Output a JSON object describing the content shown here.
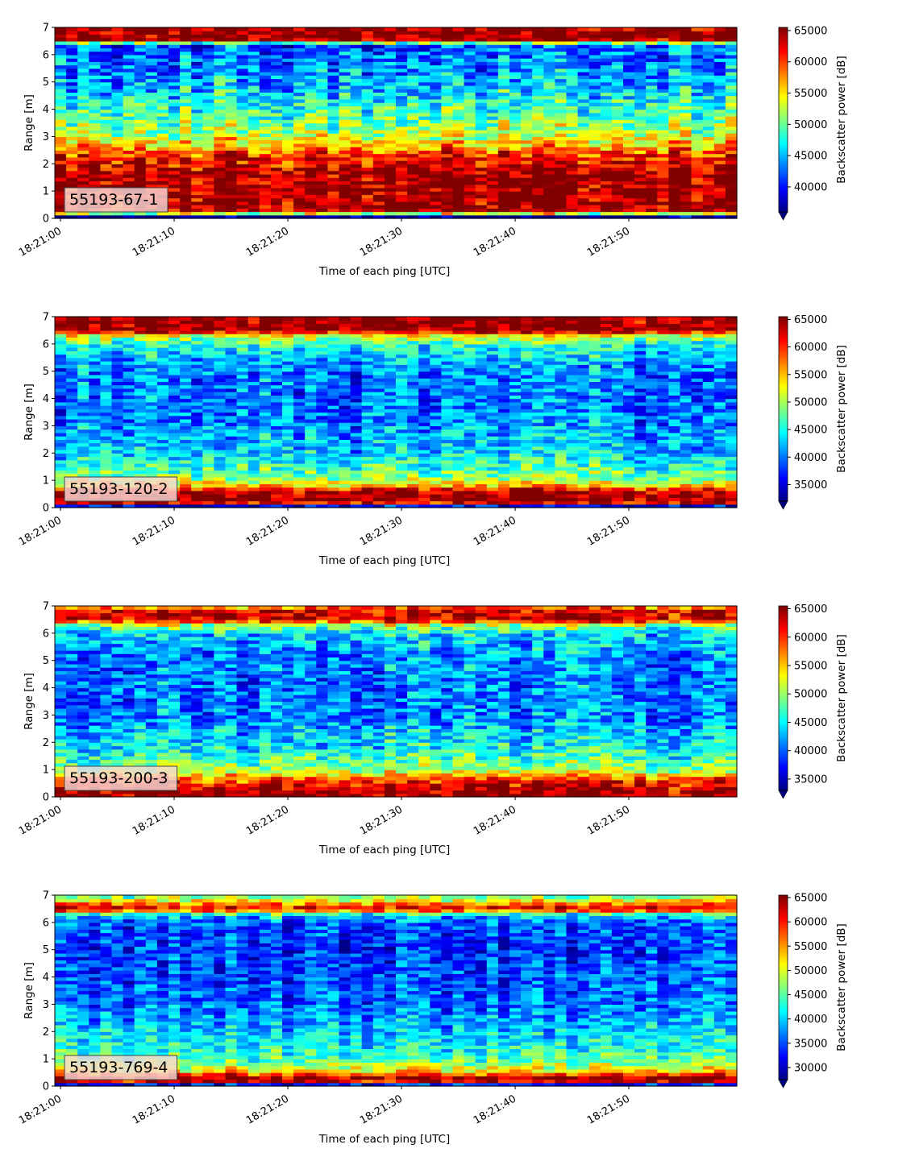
{
  "chart_data": [
    {
      "type": "heatmap",
      "label": "55193-67-1",
      "xlabel": "Time of each ping [UTC]",
      "ylabel": "Range [m]",
      "colorbar_label": "Backscatter power [dB]",
      "xlim": [
        "18:20:59.5",
        "18:21:59.5"
      ],
      "xticks": [
        "18:21:00",
        "18:21:10",
        "18:21:20",
        "18:21:30",
        "18:21:40",
        "18:21:50"
      ],
      "ylim": [
        0,
        7
      ],
      "yticks": [
        0,
        1,
        2,
        3,
        4,
        5,
        6,
        7
      ],
      "color_range": [
        36000,
        65500
      ],
      "colorbar_ticks": [
        40000,
        45000,
        50000,
        55000,
        60000,
        65000
      ],
      "colormap": "jet",
      "colorbar_extend": "min",
      "profile": [
        {
          "range": 0.1,
          "power": 36000
        },
        {
          "range": 0.25,
          "power": 65000
        },
        {
          "range": 1.6,
          "power": 65000
        },
        {
          "range": 2.3,
          "power": 61000
        },
        {
          "range": 3.0,
          "power": 53000
        },
        {
          "range": 4.0,
          "power": 49000
        },
        {
          "range": 5.0,
          "power": 45000
        },
        {
          "range": 6.0,
          "power": 43000
        },
        {
          "range": 6.4,
          "power": 42000
        },
        {
          "range": 6.5,
          "power": 65000
        },
        {
          "range": 7.0,
          "power": 65000
        }
      ]
    },
    {
      "type": "heatmap",
      "label": "55193-120-2",
      "xlabel": "Time of each ping [UTC]",
      "ylabel": "Range [m]",
      "colorbar_label": "Backscatter power [dB]",
      "xlim": [
        "18:20:59.5",
        "18:21:59.5"
      ],
      "xticks": [
        "18:21:00",
        "18:21:10",
        "18:21:20",
        "18:21:30",
        "18:21:40",
        "18:21:50"
      ],
      "ylim": [
        0,
        7
      ],
      "yticks": [
        0,
        1,
        2,
        3,
        4,
        5,
        6,
        7
      ],
      "color_range": [
        32000,
        65500
      ],
      "colorbar_ticks": [
        35000,
        40000,
        45000,
        50000,
        55000,
        60000,
        65000
      ],
      "colormap": "jet",
      "colorbar_extend": "min",
      "profile": [
        {
          "range": 0.1,
          "power": 36000
        },
        {
          "range": 0.2,
          "power": 65000
        },
        {
          "range": 0.6,
          "power": 64000
        },
        {
          "range": 0.8,
          "power": 55000
        },
        {
          "range": 1.2,
          "power": 48000
        },
        {
          "range": 2.0,
          "power": 43000
        },
        {
          "range": 3.5,
          "power": 40000
        },
        {
          "range": 5.0,
          "power": 40000
        },
        {
          "range": 6.0,
          "power": 45000
        },
        {
          "range": 6.3,
          "power": 52000
        },
        {
          "range": 6.5,
          "power": 65000
        },
        {
          "range": 7.0,
          "power": 65000
        }
      ]
    },
    {
      "type": "heatmap",
      "label": "55193-200-3",
      "xlabel": "Time of each ping [UTC]",
      "ylabel": "Range [m]",
      "colorbar_label": "Backscatter power [dB]",
      "xlim": [
        "18:20:59.5",
        "18:21:59.5"
      ],
      "xticks": [
        "18:21:00",
        "18:21:10",
        "18:21:20",
        "18:21:30",
        "18:21:40",
        "18:21:50"
      ],
      "ylim": [
        0,
        7
      ],
      "yticks": [
        0,
        1,
        2,
        3,
        4,
        5,
        6,
        7
      ],
      "color_range": [
        33000,
        65500
      ],
      "colorbar_ticks": [
        35000,
        40000,
        45000,
        50000,
        55000,
        60000,
        65000
      ],
      "colormap": "jet",
      "colorbar_extend": "min",
      "profile": [
        {
          "range": 0.1,
          "power": 65000
        },
        {
          "range": 0.4,
          "power": 63000
        },
        {
          "range": 0.7,
          "power": 58000
        },
        {
          "range": 1.0,
          "power": 50000
        },
        {
          "range": 1.8,
          "power": 45000
        },
        {
          "range": 3.0,
          "power": 41000
        },
        {
          "range": 5.0,
          "power": 41000
        },
        {
          "range": 6.0,
          "power": 44000
        },
        {
          "range": 6.3,
          "power": 50000
        },
        {
          "range": 6.5,
          "power": 63000
        },
        {
          "range": 6.8,
          "power": 63000
        },
        {
          "range": 7.0,
          "power": 56000
        }
      ]
    },
    {
      "type": "heatmap",
      "label": "55193-769-4",
      "xlabel": "Time of each ping [UTC]",
      "ylabel": "Range [m]",
      "colorbar_label": "Backscatter power [dB]",
      "xlim": [
        "18:20:59.5",
        "18:21:59.5"
      ],
      "xticks": [
        "18:21:00",
        "18:21:10",
        "18:21:20",
        "18:21:30",
        "18:21:40",
        "18:21:50"
      ],
      "ylim": [
        0,
        7
      ],
      "yticks": [
        0,
        1,
        2,
        3,
        4,
        5,
        6,
        7
      ],
      "color_range": [
        27500,
        65500
      ],
      "colorbar_ticks": [
        30000,
        35000,
        40000,
        45000,
        50000,
        55000,
        60000,
        65000
      ],
      "colormap": "jet",
      "colorbar_extend": "min",
      "profile": [
        {
          "range": 0.05,
          "power": 30000
        },
        {
          "range": 0.2,
          "power": 65000
        },
        {
          "range": 0.35,
          "power": 64000
        },
        {
          "range": 0.55,
          "power": 52000
        },
        {
          "range": 1.0,
          "power": 44000
        },
        {
          "range": 2.0,
          "power": 40000
        },
        {
          "range": 3.0,
          "power": 36000
        },
        {
          "range": 5.0,
          "power": 34000
        },
        {
          "range": 6.0,
          "power": 35000
        },
        {
          "range": 6.3,
          "power": 42000
        },
        {
          "range": 6.5,
          "power": 63000
        },
        {
          "range": 6.8,
          "power": 52000
        },
        {
          "range": 7.0,
          "power": 44000
        }
      ]
    }
  ]
}
